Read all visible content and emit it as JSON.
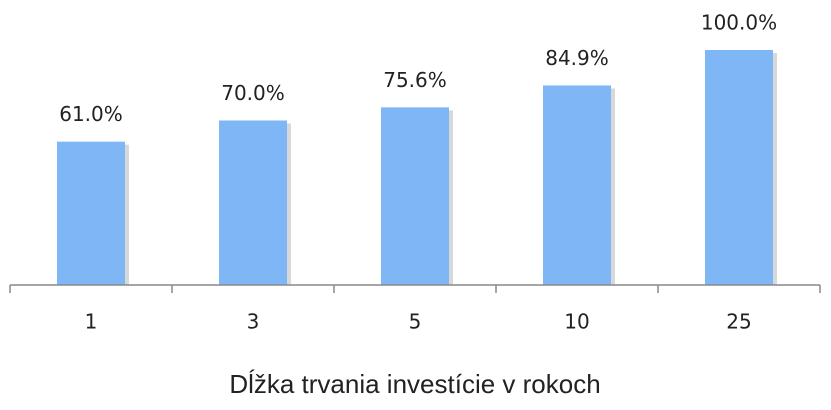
{
  "chart_data": {
    "type": "bar",
    "x_label": "Dĺžka trvania investície v rokoch",
    "categories": [
      "1",
      "3",
      "5",
      "10",
      "25"
    ],
    "values": [
      61.0,
      70.0,
      75.6,
      84.9,
      100.0
    ],
    "value_labels": [
      "61.0%",
      "70.0%",
      "75.6%",
      "84.9%",
      "100.0%"
    ],
    "color": "#7eb6f6",
    "ylim": [
      0,
      100
    ],
    "grid": false
  }
}
